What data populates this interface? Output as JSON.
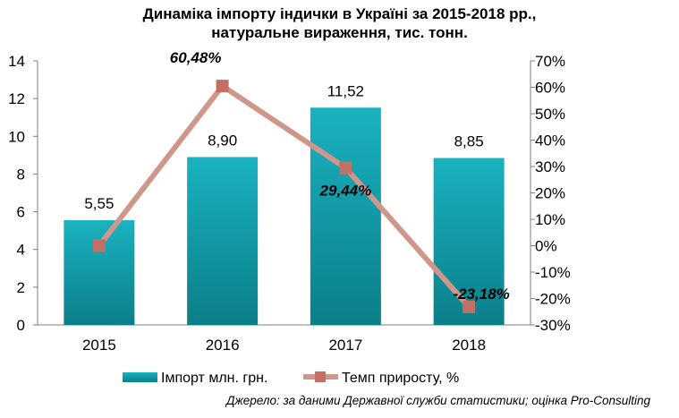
{
  "chart_data": {
    "type": "bar",
    "title_lines": [
      "Динаміка імпорту індички в Україні за 2015-2018 рр.,",
      "натуральне вираження, тис. тонн."
    ],
    "categories": [
      "2015",
      "2016",
      "2017",
      "2018"
    ],
    "series": [
      {
        "name": "Імпорт млн. грн.",
        "type": "bar",
        "axis": "left",
        "values": [
          5.55,
          8.9,
          11.52,
          8.85
        ],
        "labels": [
          "5,55",
          "8,90",
          "11,52",
          "8,85"
        ],
        "color": "#1aa3b1"
      },
      {
        "name": "Темп приросту, %",
        "type": "line",
        "axis": "right",
        "values": [
          0,
          60.48,
          29.44,
          -23.18
        ],
        "labels": [
          "",
          "60,48%",
          "29,44%",
          "-23,18%"
        ],
        "color": "#d1968a",
        "marker_color": "#c26f66"
      }
    ],
    "y_left": {
      "ylim": [
        0,
        14
      ],
      "ticks": [
        "0",
        "2",
        "4",
        "6",
        "8",
        "10",
        "12",
        "14"
      ]
    },
    "y_right": {
      "ylim": [
        -30,
        70
      ],
      "ticks": [
        "-30%",
        "-20%",
        "-10%",
        "0%",
        "10%",
        "20%",
        "30%",
        "40%",
        "50%",
        "60%",
        "70%"
      ]
    },
    "grid": false,
    "legend_position": "bottom"
  },
  "source_note": "Джерело: за даними Державної служби статистики; оцінка Pro-Consulting"
}
